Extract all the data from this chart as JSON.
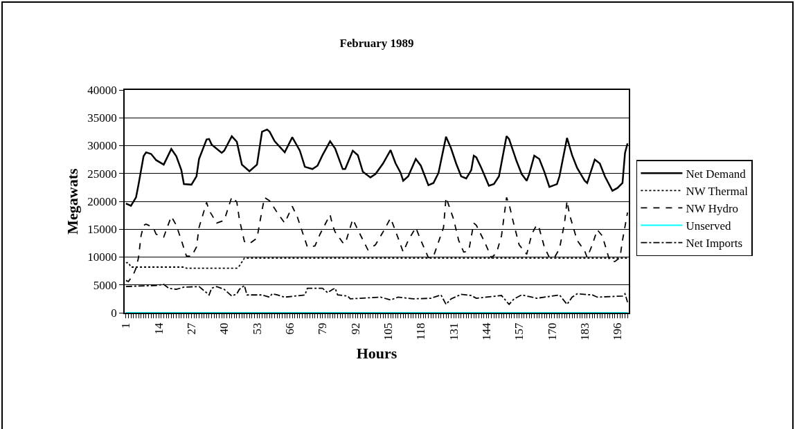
{
  "chart_data": {
    "type": "line",
    "title": "February 1989",
    "xlabel": "Hours",
    "ylabel": "Megawats",
    "xlim": [
      0.5,
      200.5
    ],
    "xticks": [
      1,
      14,
      27,
      40,
      53,
      66,
      79,
      92,
      105,
      118,
      131,
      144,
      157,
      170,
      183,
      196
    ],
    "ylim": [
      0,
      40000
    ],
    "yticks": [
      0,
      5000,
      10000,
      15000,
      20000,
      25000,
      30000,
      35000,
      40000
    ],
    "grid": "y",
    "legend": "right",
    "series": [
      {
        "name": "Net Demand",
        "color": "#000000",
        "line_style": "solid",
        "x": [
          1,
          3,
          5,
          6,
          8,
          9,
          11,
          13,
          16,
          19,
          21,
          23,
          24,
          27,
          29,
          30,
          33,
          34,
          35,
          39,
          40,
          43,
          45,
          47,
          50,
          53,
          55,
          57,
          58,
          60,
          64,
          67,
          70,
          72,
          75,
          77,
          79,
          82,
          84,
          87,
          88,
          91,
          93,
          95,
          98,
          100,
          103,
          106,
          108,
          110,
          111,
          113,
          116,
          118,
          121,
          123,
          125,
          128,
          130,
          132,
          134,
          136,
          138,
          139,
          140,
          142,
          145,
          147,
          149,
          152,
          153,
          156,
          158,
          160,
          161,
          163,
          165,
          167,
          169,
          172,
          173,
          176,
          178,
          180,
          183,
          184,
          187,
          189,
          191,
          194,
          196,
          198,
          199,
          200
        ],
        "values": [
          19600,
          19200,
          20700,
          23000,
          28100,
          28800,
          28500,
          27400,
          26600,
          29400,
          28100,
          25600,
          23100,
          23000,
          24500,
          27600,
          31100,
          31200,
          30200,
          28700,
          29100,
          31700,
          30700,
          26600,
          25400,
          26600,
          32500,
          32900,
          32500,
          30800,
          28800,
          31500,
          29100,
          26200,
          25800,
          26400,
          28300,
          30800,
          29500,
          25800,
          25800,
          29100,
          28300,
          25300,
          24300,
          24900,
          26800,
          29200,
          26800,
          25100,
          23700,
          24500,
          27600,
          26400,
          22900,
          23300,
          25100,
          31600,
          29500,
          26800,
          24500,
          24100,
          25600,
          28200,
          27900,
          26000,
          22800,
          23100,
          24500,
          31700,
          31200,
          27200,
          24900,
          23700,
          24900,
          28200,
          27600,
          25300,
          22600,
          23100,
          24500,
          31400,
          28300,
          26000,
          23700,
          23300,
          27500,
          26800,
          24500,
          21900,
          22400,
          23300,
          28700,
          30400
        ]
      },
      {
        "name": "NW Thermal",
        "color": "#000000",
        "line_style": "dotted",
        "x": [
          1,
          2,
          3,
          24,
          25,
          45,
          46,
          48,
          200
        ],
        "values": [
          9000,
          9000,
          8200,
          8200,
          8000,
          8000,
          8400,
          9800,
          9800
        ]
      },
      {
        "name": "NW Hydro",
        "color": "#000000",
        "line_style": "dashed",
        "x": [
          1,
          2,
          4,
          5,
          6,
          7,
          8,
          9,
          10,
          12,
          13,
          16,
          19,
          21,
          23,
          25,
          27,
          29,
          30,
          33,
          34,
          37,
          40,
          43,
          45,
          46,
          48,
          50,
          53,
          55,
          56,
          58,
          61,
          64,
          67,
          69,
          73,
          76,
          78,
          82,
          83,
          84,
          87,
          88,
          91,
          93,
          97,
          100,
          103,
          106,
          109,
          111,
          113,
          116,
          118,
          121,
          123,
          127,
          128,
          131,
          133,
          135,
          137,
          139,
          140,
          143,
          146,
          148,
          150,
          152,
          153,
          155,
          157,
          160,
          162,
          164,
          165,
          167,
          169,
          171,
          173,
          175,
          176,
          177,
          180,
          183,
          184,
          186,
          188,
          190,
          193,
          195,
          197,
          198,
          200
        ],
        "values": [
          5800,
          5600,
          6900,
          8000,
          9900,
          13800,
          15700,
          15900,
          15700,
          15100,
          14100,
          13600,
          17300,
          15700,
          13000,
          10200,
          10100,
          11800,
          15300,
          19800,
          18400,
          16100,
          16600,
          20800,
          19900,
          16800,
          12800,
          12400,
          13400,
          18400,
          20700,
          20100,
          18000,
          16100,
          19100,
          17200,
          11800,
          12000,
          14100,
          17600,
          15700,
          14500,
          12600,
          12400,
          16800,
          14900,
          11300,
          12200,
          14500,
          17000,
          13400,
          10900,
          13000,
          15300,
          13000,
          9900,
          10100,
          15300,
          20700,
          16800,
          13000,
          10900,
          11100,
          16100,
          15700,
          13000,
          9900,
          10700,
          13800,
          20700,
          19500,
          15700,
          12200,
          10500,
          14100,
          15800,
          15100,
          11800,
          9900,
          9900,
          11500,
          16100,
          20100,
          17600,
          13000,
          11100,
          9900,
          12200,
          14900,
          13800,
          9200,
          9200,
          9900,
          13000,
          18000
        ]
      },
      {
        "name": "Unserved",
        "color": "#00ffff",
        "line_style": "solid",
        "x": [
          1,
          200
        ],
        "values": [
          0,
          0
        ]
      },
      {
        "name": "Net Imports",
        "color": "#000000",
        "line_style": "dashdot",
        "x": [
          1,
          6,
          13,
          16,
          18,
          21,
          24,
          30,
          33,
          34,
          35,
          37,
          40,
          43,
          45,
          46,
          48,
          49,
          55,
          58,
          59,
          61,
          64,
          72,
          73,
          79,
          81,
          83,
          84,
          85,
          89,
          90,
          94,
          102,
          106,
          109,
          115,
          122,
          126,
          128,
          130,
          134,
          138,
          140,
          144,
          150,
          153,
          155,
          158,
          164,
          173,
          176,
          178,
          180,
          186,
          188,
          198,
          199,
          200
        ],
        "values": [
          4700,
          4800,
          4900,
          5100,
          4400,
          4200,
          4600,
          4700,
          3600,
          3200,
          4400,
          4700,
          4200,
          3000,
          3400,
          4200,
          4900,
          3200,
          3200,
          2800,
          3400,
          3200,
          2800,
          3200,
          4400,
          4400,
          3600,
          4200,
          4400,
          3200,
          3000,
          2500,
          2600,
          2800,
          2300,
          2800,
          2500,
          2600,
          3200,
          1500,
          2500,
          3300,
          3100,
          2600,
          2800,
          3100,
          1500,
          2500,
          3200,
          2600,
          3200,
          1500,
          2800,
          3400,
          3200,
          2800,
          3000,
          3400,
          1900
        ]
      }
    ]
  }
}
